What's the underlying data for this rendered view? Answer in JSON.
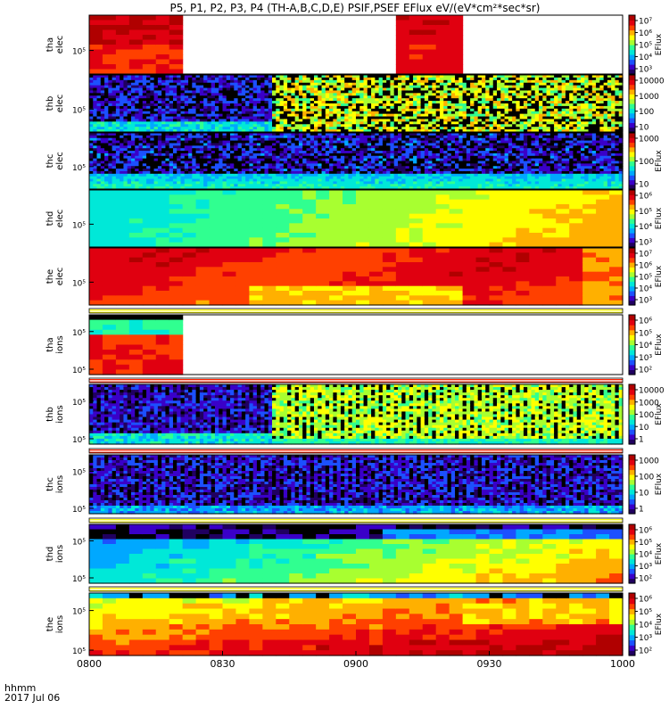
{
  "title": "P5, P1, P2, P3, P4 (TH-A,B,C,D,E) PSIF,PSEF EFlux eV/(eV*cm²*sec*sr)",
  "footer": {
    "label": "hhmm",
    "date": "2017 Jul 06"
  },
  "x_axis": {
    "ticks": [
      "0800",
      "0830",
      "0900",
      "0930",
      "1000"
    ]
  },
  "colors": {
    "palette": [
      "#200060",
      "#3a00c8",
      "#1c50ff",
      "#00a8ff",
      "#00e8d8",
      "#30ff90",
      "#a8ff30",
      "#ffff00",
      "#ffb000",
      "#ff4000",
      "#e00010",
      "#b00000"
    ]
  },
  "chart_data": {
    "type": "heatmap",
    "x_range": [
      "0800",
      "1000"
    ],
    "panels": [
      {
        "id": "tha-elec",
        "ylabel": [
          "tha",
          "elec"
        ],
        "yticks": [
          "10⁵"
        ],
        "cbar_label": "EFlux",
        "cbar_ticks": [
          "10³",
          "10⁴",
          "10⁵",
          "10⁶",
          "10⁷"
        ],
        "data_intervals": [
          [
            "0800",
            "0822"
          ],
          [
            "0908",
            "0923"
          ]
        ],
        "pattern": "red"
      },
      {
        "id": "thb-elec",
        "ylabel": [
          "thb",
          "elec"
        ],
        "yticks": [
          "10⁵"
        ],
        "cbar_ticks": [
          "10",
          "100",
          "1000",
          "10000"
        ],
        "pattern": "noise-transition",
        "transition": "0841"
      },
      {
        "id": "thc-elec",
        "ylabel": [
          "thc",
          "elec"
        ],
        "yticks": [
          "10⁵"
        ],
        "cbar_label": "EFlux",
        "cbar_ticks": [
          "10",
          "100",
          "1000"
        ],
        "pattern": "noise-blue"
      },
      {
        "id": "thd-elec",
        "ylabel": [
          "thd",
          "elec"
        ],
        "yticks": [
          "10⁵"
        ],
        "cbar_label": "EFlux",
        "cbar_ticks": [
          "10³",
          "10⁴",
          "10⁵",
          "10⁶"
        ],
        "pattern": "gradient-cyan-yellow"
      },
      {
        "id": "the-elec",
        "ylabel": [
          "the",
          "elec"
        ],
        "yticks": [
          "10⁵"
        ],
        "cbar_label": "EFlux",
        "cbar_ticks": [
          "10³",
          "10⁴",
          "10⁵",
          "10⁶",
          "10⁷"
        ],
        "pattern": "red-orange"
      },
      {
        "id": "tha-ions",
        "ylabel": [
          "tha",
          "ions"
        ],
        "yticks": [
          "10⁵",
          "10⁵"
        ],
        "cbar_label": "EFlux",
        "cbar_ticks": [
          "10²",
          "10³",
          "10⁴",
          "10⁵",
          "10⁶"
        ],
        "data_intervals": [
          [
            "0800",
            "0822"
          ]
        ],
        "pattern": "ions-tha"
      },
      {
        "id": "thb-ions",
        "ylabel": [
          "thb",
          "ions"
        ],
        "yticks": [
          "10⁵",
          "10⁵"
        ],
        "cbar_label": "EFlux",
        "cbar_ticks": [
          "1",
          "10",
          "100",
          "1000",
          "10000"
        ],
        "pattern": "ions-noise-transition",
        "transition": "0841"
      },
      {
        "id": "thc-ions",
        "ylabel": [
          "thc",
          "ions"
        ],
        "yticks": [
          "10⁵",
          "10⁵"
        ],
        "cbar_label": "EFlux",
        "cbar_ticks": [
          "1",
          "10",
          "100",
          "1000"
        ],
        "pattern": "ions-noise-blue"
      },
      {
        "id": "thd-ions",
        "ylabel": [
          "thd",
          "ions"
        ],
        "yticks": [
          "10⁵",
          "10⁵"
        ],
        "cbar_label": "EFlux",
        "cbar_ticks": [
          "10²",
          "10³",
          "10⁴",
          "10⁵",
          "10⁶"
        ],
        "pattern": "ions-thd"
      },
      {
        "id": "the-ions",
        "ylabel": [
          "the",
          "ions"
        ],
        "yticks": [
          "10⁵",
          "10⁵"
        ],
        "cbar_label": "EFlux",
        "cbar_ticks": [
          "10²",
          "10³",
          "10⁴",
          "10⁵",
          "10⁶"
        ],
        "pattern": "ions-the"
      }
    ]
  }
}
